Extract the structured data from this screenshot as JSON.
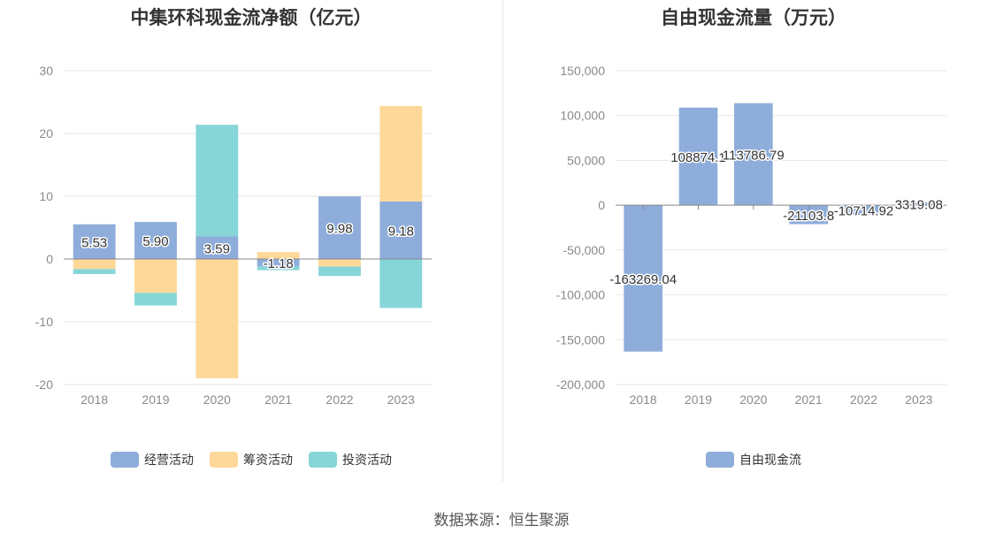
{
  "source_text": "数据来源：恒生聚源",
  "chart_data": [
    {
      "type": "bar",
      "stacked": true,
      "title": "中集环科现金流净额（亿元）",
      "categories": [
        "2018",
        "2019",
        "2020",
        "2021",
        "2022",
        "2023"
      ],
      "ylim": [
        -20,
        30
      ],
      "yticks": [
        -20,
        -10,
        0,
        10,
        20,
        30
      ],
      "grid": true,
      "legend_position": "bottom",
      "series": [
        {
          "name": "经营活动",
          "color": "#8eaddb",
          "values": [
            5.53,
            5.9,
            3.59,
            -1.18,
            9.98,
            9.18
          ],
          "labels": [
            "5.53",
            "5.90",
            "3.59",
            "-1.18",
            "9.98",
            "9.18"
          ]
        },
        {
          "name": "筹资活动",
          "color": "#fdd899",
          "values": [
            -1.6,
            -5.4,
            -19.0,
            1.1,
            -1.2,
            15.2
          ]
        },
        {
          "name": "投资活动",
          "color": "#86d6d8",
          "values": [
            -0.8,
            -2.0,
            17.8,
            -0.6,
            -1.5,
            -7.8
          ]
        }
      ]
    },
    {
      "type": "bar",
      "title": "自由现金流量（万元）",
      "categories": [
        "2018",
        "2019",
        "2020",
        "2021",
        "2022",
        "2023"
      ],
      "ylim": [
        -200000,
        150000
      ],
      "yticks": [
        -200000,
        -150000,
        -100000,
        -50000,
        0,
        50000,
        100000,
        150000
      ],
      "ytick_labels": [
        "-200,000",
        "-150,000",
        "-100,000",
        "-50,000",
        "0",
        "50,000",
        "100,000",
        "150,000"
      ],
      "grid": true,
      "legend_position": "bottom",
      "series": [
        {
          "name": "自由现金流",
          "color": "#8eaddb",
          "values": [
            -163269.04,
            108874.1,
            113786.79,
            -21103.8,
            -10714.92,
            3319.08
          ],
          "labels": [
            "-163269.04",
            "108874.1",
            "113786.79",
            "-21103.8",
            "-10714.92",
            "3319.08"
          ]
        }
      ]
    }
  ]
}
